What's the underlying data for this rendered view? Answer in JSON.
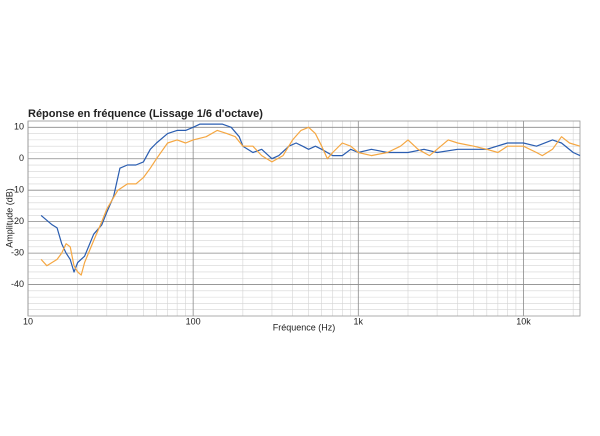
{
  "chart_data": {
    "type": "line",
    "title": "Réponse en fréquence (Lissage 1/6 d'octave)",
    "x_label": "Fréquence (Hz)",
    "y_label": "Amplitude (dB)",
    "log_x": true,
    "grid": true,
    "xlim": [
      10,
      22000
    ],
    "ylim": [
      -50,
      12
    ],
    "xticks": [
      10,
      100,
      {
        "value": 1000,
        "label": "1k"
      },
      {
        "value": 10000,
        "label": "10k"
      }
    ],
    "yticks": [
      -40,
      -30,
      -20,
      -10,
      0,
      10
    ],
    "xminorticks": [
      20,
      30,
      40,
      50,
      60,
      70,
      80,
      90,
      200,
      300,
      400,
      500,
      600,
      700,
      800,
      900,
      2000,
      3000,
      4000,
      5000,
      6000,
      7000,
      8000,
      9000,
      20000
    ],
    "yminorticks": [
      -48,
      -46,
      -44,
      -42,
      -38,
      -36,
      -34,
      -32,
      -28,
      -26,
      -24,
      -22,
      -18,
      -16,
      -14,
      -12,
      -8,
      -6,
      -4,
      -2,
      2,
      4,
      6,
      8,
      12
    ],
    "series": [
      {
        "color": "#2a5db0",
        "x": [
          12,
          14,
          15,
          16,
          17,
          18,
          19,
          20,
          22,
          25,
          28,
          30,
          33,
          36,
          40,
          45,
          50,
          55,
          60,
          70,
          80,
          90,
          100,
          110,
          130,
          150,
          170,
          190,
          200,
          230,
          260,
          300,
          330,
          380,
          420,
          460,
          500,
          550,
          600,
          700,
          800,
          900,
          1000,
          1200,
          1500,
          2000,
          2500,
          3000,
          4000,
          5000,
          6000,
          8000,
          10000,
          12000,
          15000,
          17000,
          20000,
          22000
        ],
        "values": [
          -18,
          -21,
          -22,
          -27,
          -30,
          -32,
          -36,
          -33,
          -31,
          -24,
          -21,
          -17,
          -12,
          -3,
          -2,
          -2,
          -1,
          3,
          5,
          8,
          9,
          9,
          10,
          11,
          11,
          11,
          10,
          7,
          4,
          2,
          3,
          0,
          1,
          4,
          5,
          4,
          3,
          4,
          3,
          1,
          1,
          3,
          2,
          3,
          2,
          2,
          3,
          2,
          3,
          3,
          3,
          5,
          5,
          4,
          6,
          5,
          2,
          1
        ]
      },
      {
        "color": "#f5a742",
        "x": [
          12,
          13,
          15,
          16,
          17,
          18,
          19,
          20,
          21,
          22,
          25,
          28,
          30,
          35,
          40,
          45,
          50,
          55,
          60,
          70,
          80,
          90,
          100,
          120,
          140,
          160,
          180,
          200,
          230,
          260,
          300,
          350,
          400,
          450,
          500,
          550,
          600,
          650,
          700,
          800,
          900,
          1000,
          1200,
          1500,
          1800,
          2000,
          2300,
          2700,
          3000,
          3500,
          4000,
          5000,
          6000,
          7000,
          8000,
          10000,
          12000,
          13000,
          15000,
          17000,
          19000,
          22000
        ],
        "values": [
          -32,
          -34,
          -32,
          -30,
          -27,
          -28,
          -34,
          -36,
          -37,
          -33,
          -26,
          -20,
          -16,
          -10,
          -8,
          -8,
          -6,
          -3,
          0,
          5,
          6,
          5,
          6,
          7,
          9,
          8,
          7,
          4,
          4,
          1,
          -1,
          1,
          6,
          9,
          10,
          8,
          4,
          0,
          2,
          5,
          4,
          2,
          1,
          2,
          4,
          6,
          3,
          1,
          3,
          6,
          5,
          4,
          3,
          2,
          4,
          4,
          2,
          1,
          3,
          7,
          5,
          4
        ]
      }
    ]
  }
}
